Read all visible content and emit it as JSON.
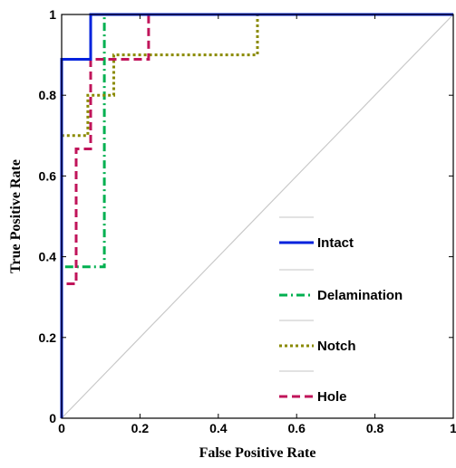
{
  "chart_data": {
    "type": "line",
    "title": "",
    "xlabel": "False Positive Rate",
    "ylabel": "True Positive Rate",
    "xlim": [
      0,
      1
    ],
    "ylim": [
      0,
      1
    ],
    "x_ticks": [
      0,
      0.2,
      0.4,
      0.6,
      0.8,
      1
    ],
    "y_ticks": [
      0,
      0.2,
      0.4,
      0.6,
      0.8,
      1
    ],
    "x_tick_labels": [
      "0",
      "0.2",
      "0.4",
      "0.6",
      "0.8",
      "1"
    ],
    "y_tick_labels": [
      "0",
      "0.2",
      "0.4",
      "0.6",
      "0.8",
      "1"
    ],
    "grid": false,
    "legend_position": "lower-right",
    "series": [
      {
        "name": "Intact",
        "color": "#0022dd",
        "style": "solid",
        "x": [
          0,
          0,
          0.074,
          0.074,
          1
        ],
        "y": [
          0,
          0.889,
          0.889,
          1,
          1
        ]
      },
      {
        "name": "Delamination",
        "color": "#00b050",
        "style": "dashdot",
        "x": [
          0,
          0,
          0.109,
          0.109,
          1
        ],
        "y": [
          0,
          0.375,
          0.375,
          1,
          1
        ]
      },
      {
        "name": "Notch",
        "color": "#8a8a00",
        "style": "dotted",
        "x": [
          0,
          0,
          0.067,
          0.067,
          0.133,
          0.133,
          0.2,
          0.2,
          0.5,
          0.5,
          1
        ],
        "y": [
          0,
          0.7,
          0.7,
          0.8,
          0.8,
          0.9,
          0.9,
          0.9,
          0.9,
          1,
          1
        ]
      },
      {
        "name": "Hole",
        "color": "#c0145a",
        "style": "dashed",
        "x": [
          0,
          0,
          0.037,
          0.037,
          0.074,
          0.074,
          0.222,
          0.222,
          1
        ],
        "y": [
          0,
          0.333,
          0.333,
          0.667,
          0.667,
          0.889,
          0.889,
          1,
          1
        ]
      },
      {
        "name": "",
        "color": "#c8c8c8",
        "style": "solid",
        "x": [
          0,
          1
        ],
        "y": [
          0,
          1
        ]
      }
    ]
  }
}
